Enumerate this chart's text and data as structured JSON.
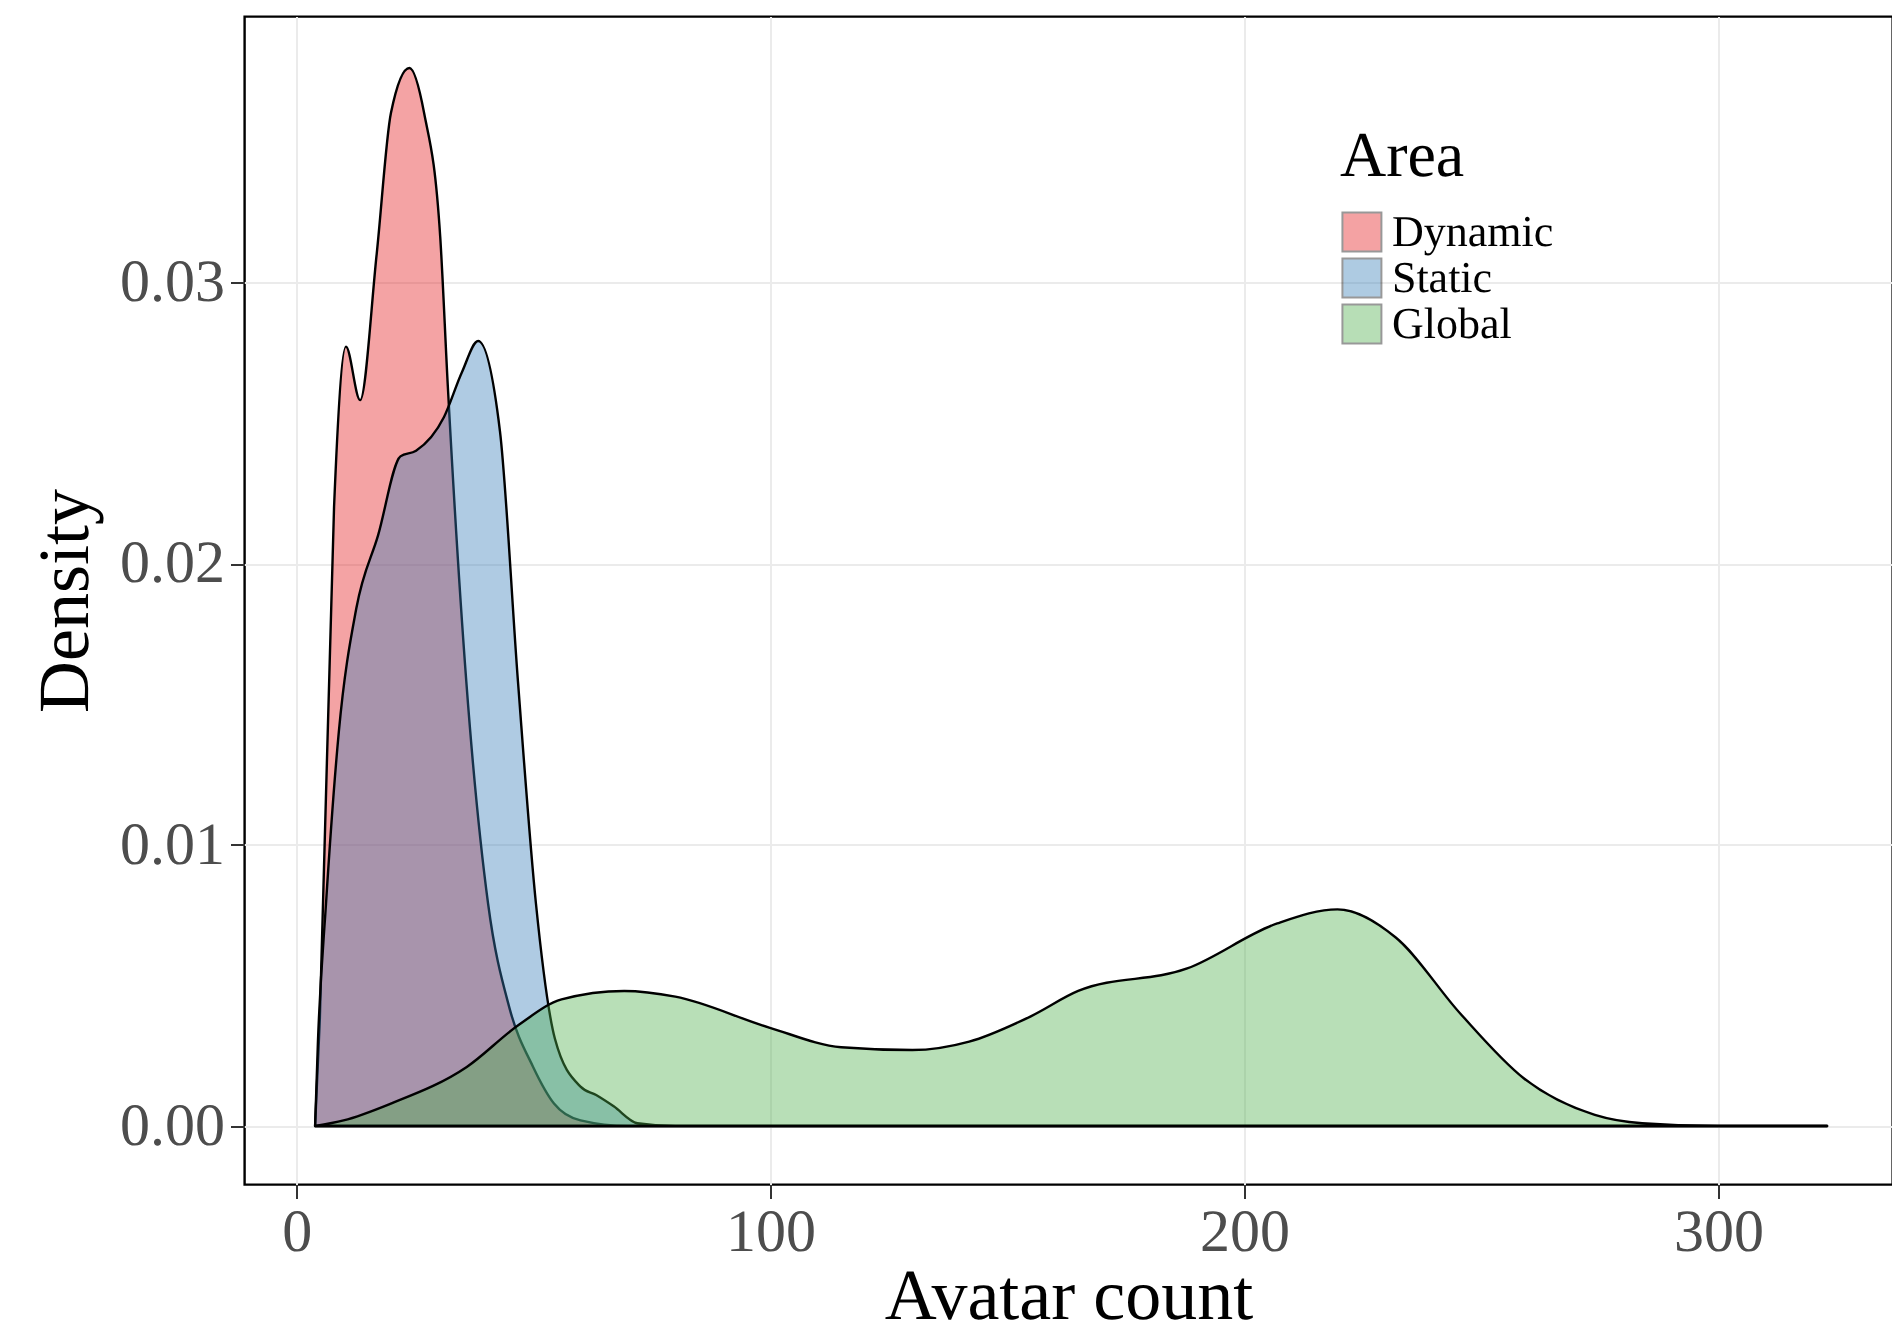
{
  "chart_data": {
    "type": "area",
    "xlabel": "Avatar count",
    "ylabel": "Density",
    "legend_title": "Area",
    "legend": "top right",
    "grid": true,
    "xlim": [
      -11,
      336.7
    ],
    "ylim": [
      -0.00206,
      0.03945
    ],
    "xticks": [
      0,
      100,
      200,
      300
    ],
    "yticks": [
      {
        "value": 0,
        "label": "0.00"
      },
      0.01,
      0.02,
      0.03
    ],
    "series": [
      {
        "name": "Dynamic",
        "color": "#e41a1c",
        "x": [
          4,
          5,
          8,
          10.5,
          13.5,
          17,
          20,
          23.9,
          27,
          30.4,
          32,
          35.9,
          40.5,
          45,
          50,
          54.4,
          60,
          70,
          100,
          200,
          323
        ],
        "values": [
          0,
          0.0038,
          0.022,
          0.0277,
          0.0258,
          0.031,
          0.036,
          0.0376,
          0.036,
          0.0316,
          0.0263,
          0.0158,
          0.0079,
          0.0042,
          0.0021,
          0.0008,
          0.0002,
          0,
          0,
          0,
          0
        ]
      },
      {
        "name": "Static",
        "color": "#377eb8",
        "x": [
          4,
          4.6,
          6.3,
          9,
          12.7,
          17.3,
          22,
          25.3,
          31.2,
          35,
          38.4,
          43,
          46.8,
          50.6,
          54.6,
          60,
          63.3,
          67,
          72,
          80,
          200,
          323
        ],
        "values": [
          0,
          0.003,
          0.0079,
          0.014,
          0.0184,
          0.021,
          0.0238,
          0.024,
          0.0252,
          0.0268,
          0.0279,
          0.0247,
          0.0158,
          0.0079,
          0.0031,
          0.0014,
          0.0011,
          0.0007,
          0.0001,
          0,
          0,
          0
        ]
      },
      {
        "name": "Global",
        "color": "#4daf4a",
        "x": [
          4,
          10,
          20,
          36,
          47,
          56,
          69.2,
          80,
          99.8,
          115,
          130,
          142,
          155,
          165,
          188,
          207,
          219.7,
          232,
          245.6,
          259,
          274,
          284,
          300,
          323
        ],
        "values": [
          0,
          0.0002,
          0.0008,
          0.0021,
          0.0036,
          0.0045,
          0.0048,
          0.0046,
          0.0035,
          0.0028,
          0.0027,
          0.003,
          0.0039,
          0.0048,
          0.0056,
          0.0072,
          0.0077,
          0.0067,
          0.004,
          0.0017,
          0.0004,
          0.0001,
          0,
          0
        ]
      }
    ]
  }
}
